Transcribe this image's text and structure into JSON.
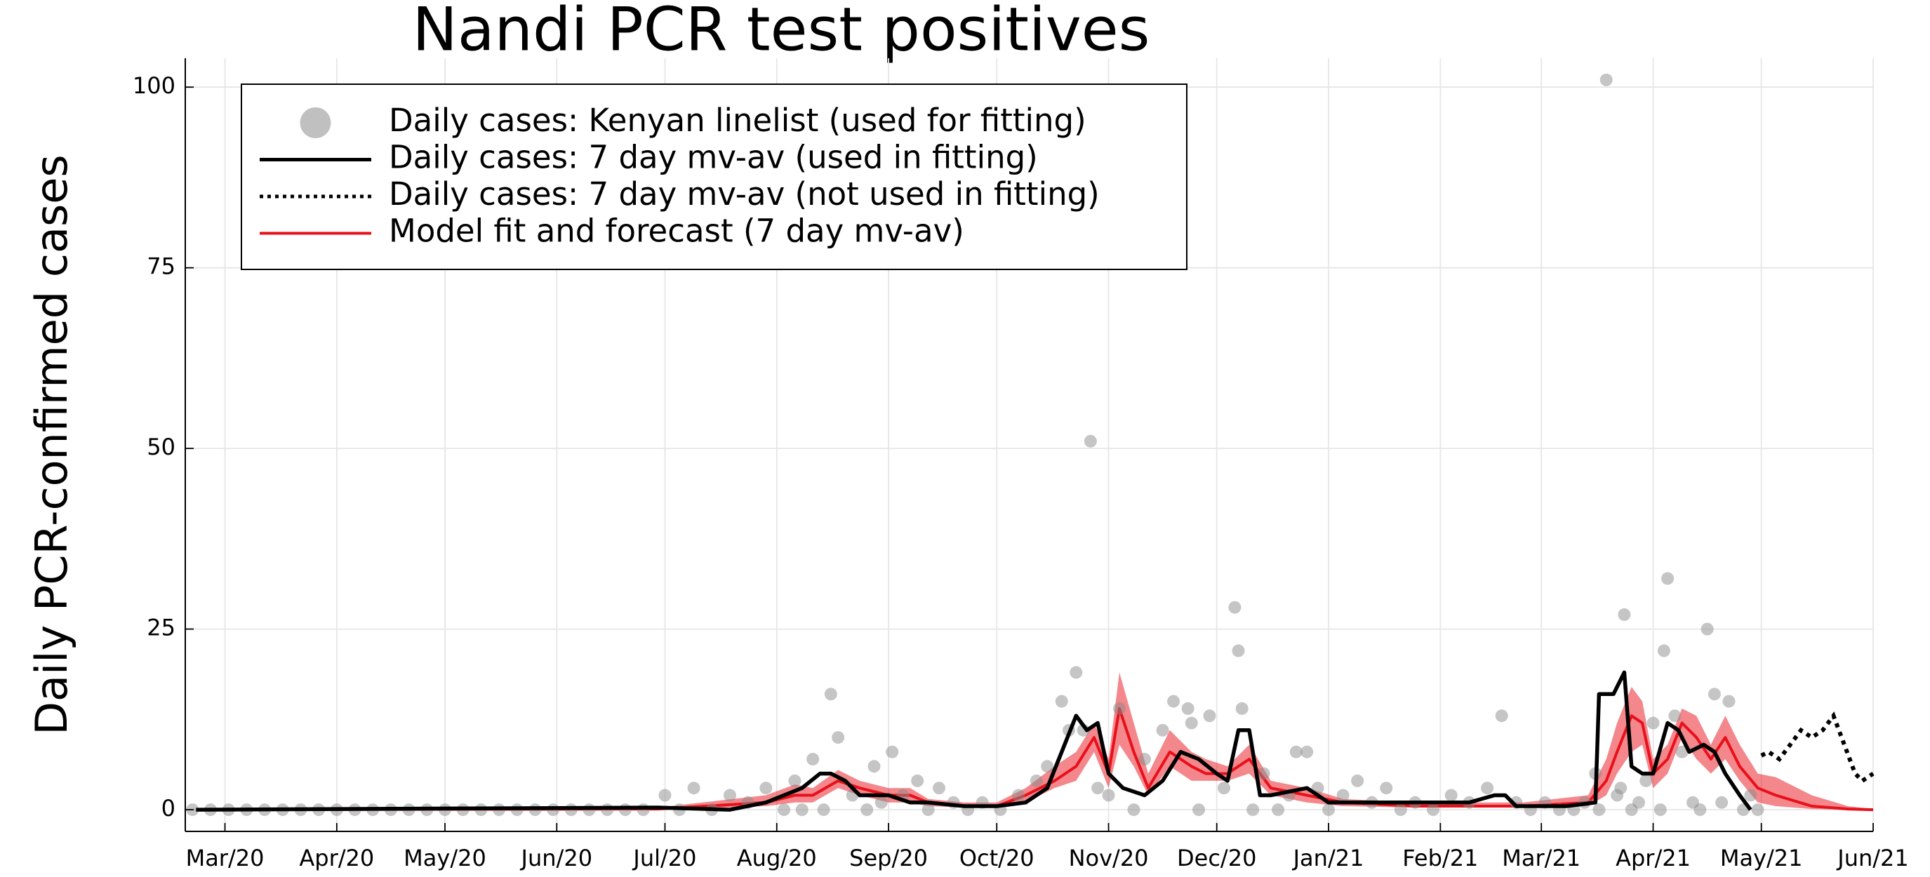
{
  "chart_data": {
    "type": "line",
    "title": "Nandi PCR test positives",
    "y_label": "Daily PCR-confirmed cases",
    "xlim": [
      -11,
      457
    ],
    "ylim": [
      -3,
      104
    ],
    "xticks": [
      {
        "value": 0,
        "label": "Mar/20"
      },
      {
        "value": 31,
        "label": "Apr/20"
      },
      {
        "value": 61,
        "label": "May/20"
      },
      {
        "value": 92,
        "label": "Jun/20"
      },
      {
        "value": 122,
        "label": "Jul/20"
      },
      {
        "value": 153,
        "label": "Aug/20"
      },
      {
        "value": 184,
        "label": "Sep/20"
      },
      {
        "value": 214,
        "label": "Oct/20"
      },
      {
        "value": 245,
        "label": "Nov/20"
      },
      {
        "value": 275,
        "label": "Dec/20"
      },
      {
        "value": 306,
        "label": "Jan/21"
      },
      {
        "value": 337,
        "label": "Feb/21"
      },
      {
        "value": 365,
        "label": "Mar/21"
      },
      {
        "value": 396,
        "label": "Apr/21"
      },
      {
        "value": 426,
        "label": "May/21"
      },
      {
        "value": 457,
        "label": "Jun/21"
      }
    ],
    "yticks": [
      0,
      25,
      50,
      75,
      100
    ],
    "grid": true,
    "legend": "top-left",
    "series": [
      {
        "name": "Daily cases: Kenyan linelist (used for fitting)",
        "style": "scatter",
        "color": "#8c8c8c",
        "x": [
          -9,
          -4,
          1,
          6,
          11,
          16,
          21,
          26,
          31,
          36,
          41,
          46,
          51,
          56,
          61,
          66,
          71,
          76,
          81,
          86,
          91,
          96,
          101,
          106,
          111,
          116,
          122,
          126,
          130,
          135,
          140,
          145,
          150,
          155,
          158,
          160,
          163,
          166,
          168,
          170,
          174,
          178,
          180,
          182,
          185,
          188,
          192,
          195,
          198,
          202,
          206,
          210,
          215,
          220,
          225,
          228,
          232,
          234,
          236,
          238,
          240,
          242,
          245,
          248,
          252,
          255,
          260,
          263,
          267,
          268,
          270,
          273,
          277,
          280,
          281,
          282,
          285,
          288,
          292,
          295,
          297,
          300,
          303,
          306,
          310,
          314,
          318,
          322,
          326,
          330,
          335,
          340,
          345,
          350,
          354,
          358,
          362,
          366,
          370,
          374,
          377,
          380,
          381,
          383,
          386,
          387,
          388,
          390,
          392,
          394,
          396,
          398,
          399,
          400,
          402,
          404,
          407,
          409,
          411,
          413,
          415,
          417,
          421,
          423,
          425
        ],
        "values": [
          0,
          0,
          0,
          0,
          0,
          0,
          0,
          0,
          0,
          0,
          0,
          0,
          0,
          0,
          0,
          0,
          0,
          0,
          0,
          0,
          0,
          0,
          0,
          0,
          0,
          0,
          2,
          0,
          3,
          0,
          2,
          1,
          3,
          0,
          4,
          0,
          7,
          0,
          16,
          10,
          2,
          0,
          6,
          1,
          8,
          2,
          4,
          0,
          3,
          1,
          0,
          1,
          0,
          2,
          4,
          6,
          15,
          11,
          19,
          11,
          51,
          3,
          2,
          14,
          0,
          7,
          11,
          15,
          14,
          12,
          0,
          13,
          3,
          28,
          22,
          14,
          0,
          5,
          0,
          2,
          8,
          8,
          3,
          0,
          2,
          4,
          1,
          3,
          0,
          1,
          0,
          2,
          1,
          3,
          13,
          1,
          0,
          1,
          0,
          0,
          1,
          5,
          0,
          101,
          2,
          3,
          27,
          0,
          1,
          4,
          12,
          0,
          22,
          32,
          13,
          8,
          1,
          0,
          25,
          16,
          1,
          15,
          0,
          2,
          0
        ]
      },
      {
        "name": "Daily cases: 7 day mv-av (used in fitting)",
        "style": "solid",
        "color": "#000000",
        "x": [
          -8,
          120,
          140,
          150,
          160,
          165,
          168,
          172,
          176,
          184,
          190,
          195,
          205,
          214,
          222,
          228,
          232,
          236,
          239,
          242,
          245,
          249,
          255,
          260,
          265,
          270,
          275,
          278,
          281,
          284,
          287,
          290,
          300,
          306,
          320,
          337,
          345,
          352,
          355,
          358,
          361,
          372,
          380,
          381,
          385,
          388,
          390,
          393,
          396,
          400,
          403,
          406,
          410,
          413,
          416,
          420,
          423
        ],
        "values": [
          0,
          0.3,
          0,
          1,
          3,
          5,
          5,
          4,
          2,
          2,
          1,
          1,
          0.5,
          0.5,
          1,
          3,
          8,
          13,
          11,
          12,
          5,
          3,
          2,
          4,
          8,
          7,
          5,
          4,
          11,
          11,
          2,
          2,
          3,
          1,
          1,
          1,
          1,
          2,
          2,
          0.5,
          0.5,
          0.5,
          1,
          16,
          16,
          19,
          6,
          5,
          5,
          12,
          11,
          8,
          9,
          8,
          5,
          2,
          0
        ]
      },
      {
        "name": "Daily cases: 7 day mv-av (not used in fitting)",
        "style": "dotted",
        "color": "#000000",
        "x": [
          426,
          428,
          431,
          434,
          437,
          440,
          443,
          446,
          449,
          452,
          454,
          457
        ],
        "values": [
          7.5,
          8,
          7,
          9,
          11,
          10,
          11,
          13,
          9,
          5,
          4,
          5
        ]
      },
      {
        "name": "Model fit and forecast (7 day mv-av)",
        "style": "band",
        "color": "#e8101a",
        "x": [
          -8,
          120,
          150,
          158,
          163,
          170,
          176,
          184,
          190,
          195,
          205,
          214,
          222,
          230,
          236,
          241,
          245,
          248,
          252,
          256,
          262,
          268,
          272,
          278,
          284,
          290,
          300,
          310,
          330,
          360,
          378,
          383,
          386,
          390,
          393,
          396,
          400,
          404,
          408,
          412,
          416,
          420,
          425,
          430,
          440,
          450,
          457
        ],
        "values": [
          0,
          0.1,
          1,
          2,
          2,
          4,
          3,
          2,
          2,
          1,
          0.5,
          0.5,
          2,
          4,
          6,
          10,
          5,
          14,
          8,
          3,
          8,
          6,
          5,
          5,
          7,
          3,
          2,
          1,
          0.5,
          0.5,
          1,
          4,
          8,
          13,
          12,
          5,
          7,
          12,
          10,
          7,
          10,
          6,
          3,
          2,
          0.5,
          0.1,
          0
        ],
        "lower": [
          0,
          0,
          0.5,
          1,
          1,
          3,
          2,
          1,
          1,
          0.5,
          0.3,
          0.3,
          1,
          3,
          4,
          8,
          3,
          9,
          6,
          2,
          6,
          4,
          4,
          4,
          5,
          2,
          1,
          0.5,
          0.3,
          0.3,
          0.5,
          2,
          5,
          8,
          9,
          3,
          5,
          10,
          7,
          5,
          7,
          4,
          1,
          0.5,
          0.1,
          0,
          0
        ],
        "upper": [
          0.1,
          0.3,
          2,
          3.5,
          3,
          5.5,
          4,
          3,
          3,
          1.5,
          1,
          1,
          3,
          6,
          8,
          12,
          7,
          19,
          12,
          5,
          11,
          8,
          7,
          6,
          9,
          4,
          3,
          1.5,
          1,
          1,
          2,
          7,
          12,
          17,
          15,
          7,
          9,
          14,
          13,
          9,
          13,
          9,
          5,
          4.5,
          2,
          0.5,
          0.1
        ]
      }
    ]
  }
}
